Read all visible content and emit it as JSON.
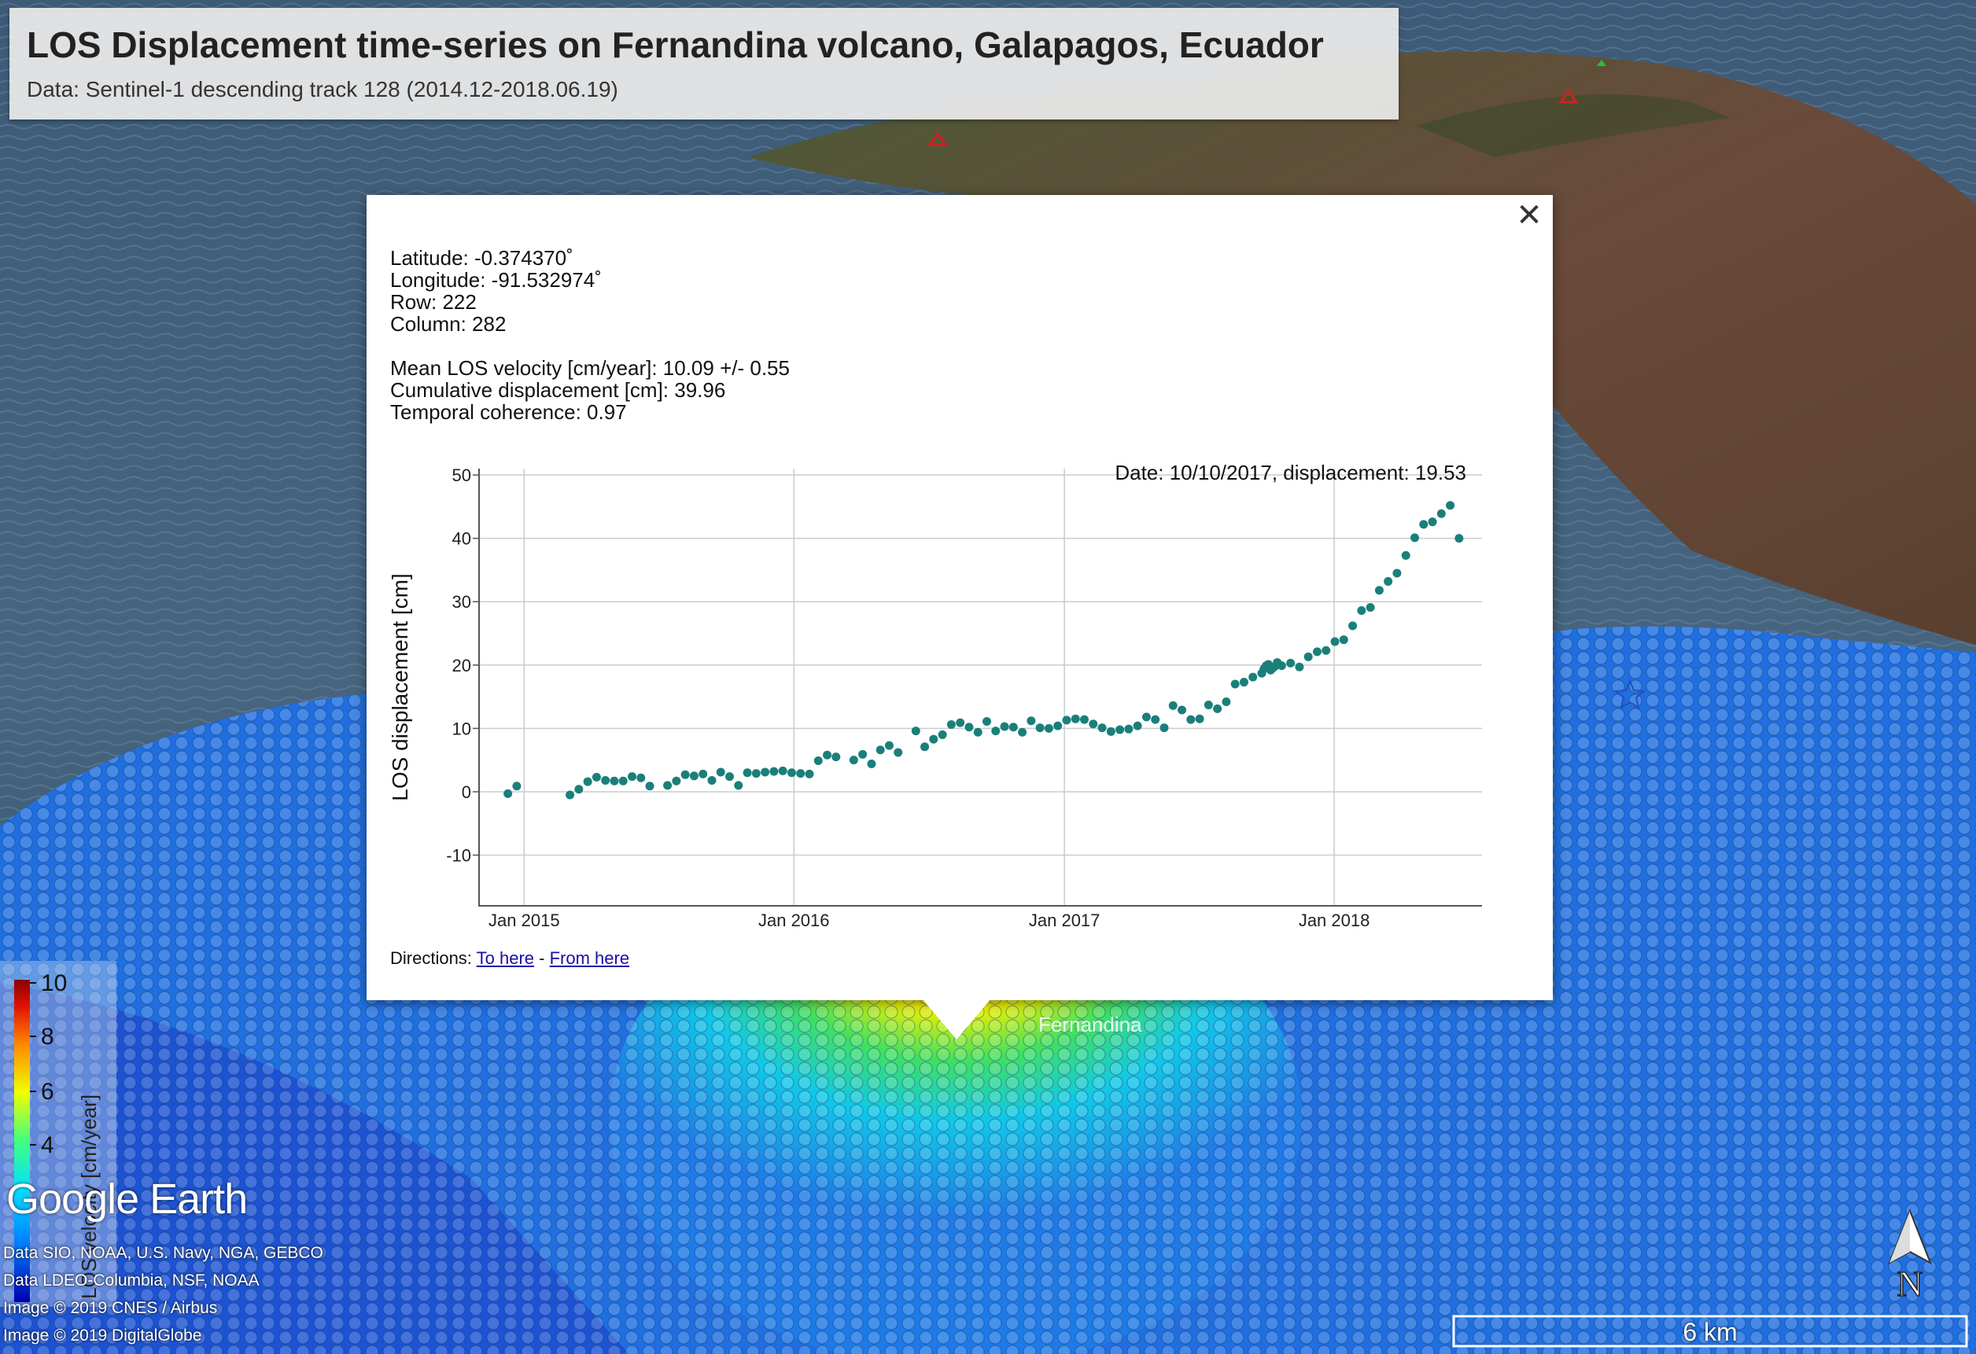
{
  "title": {
    "main": "LOS Displacement time-series on Fernandina volcano, Galapagos, Ecuador",
    "sub": "Data: Sentinel-1 descending track 128 (2014.12-2018.06.19)"
  },
  "popup": {
    "close_icon": "close-icon",
    "latitude": "Latitude: -0.374370˚",
    "longitude": "Longitude: -91.532974˚",
    "row": "Row: 222",
    "column": "Column: 282",
    "mean_velocity": "Mean LOS velocity [cm/year]: 10.09 +/- 0.55",
    "cumulative": "Cumulative displacement [cm]: 39.96",
    "coherence": "Temporal coherence: 0.97",
    "hover_label": "Date: 10/10/2017, displacement: 19.53",
    "directions_prefix": "Directions: ",
    "to_here": "To here",
    "separator": " - ",
    "from_here": "From here"
  },
  "chart_data": {
    "type": "scatter",
    "title": "",
    "xlabel": "",
    "ylabel": "LOS displacement [cm]",
    "ylim": [
      -18,
      51
    ],
    "xlim": [
      "2014-11-01",
      "2018-07-20"
    ],
    "yticks": [
      50,
      40,
      30,
      20,
      10,
      0,
      -10
    ],
    "xticks": [
      {
        "date": "2015-01-01",
        "label": "Jan 2015"
      },
      {
        "date": "2016-01-01",
        "label": "Jan 2016"
      },
      {
        "date": "2017-01-01",
        "label": "Jan 2017"
      },
      {
        "date": "2018-01-01",
        "label": "Jan 2018"
      }
    ],
    "grid": true,
    "color": "#1a7f7a",
    "series": [
      {
        "points": [
          [
            "2014-12-10",
            -0.3
          ],
          [
            "2014-12-22",
            0.9
          ],
          [
            "2015-03-04",
            -0.5
          ],
          [
            "2015-03-16",
            0.4
          ],
          [
            "2015-03-28",
            1.6
          ],
          [
            "2015-04-09",
            2.3
          ],
          [
            "2015-04-21",
            1.8
          ],
          [
            "2015-05-03",
            1.7
          ],
          [
            "2015-05-15",
            1.7
          ],
          [
            "2015-05-27",
            2.4
          ],
          [
            "2015-06-08",
            2.2
          ],
          [
            "2015-06-20",
            0.9
          ],
          [
            "2015-07-14",
            1.0
          ],
          [
            "2015-07-26",
            1.7
          ],
          [
            "2015-08-07",
            2.7
          ],
          [
            "2015-08-19",
            2.5
          ],
          [
            "2015-08-31",
            2.8
          ],
          [
            "2015-09-12",
            1.8
          ],
          [
            "2015-09-24",
            3.1
          ],
          [
            "2015-10-06",
            2.4
          ],
          [
            "2015-10-18",
            1.0
          ],
          [
            "2015-10-30",
            3.0
          ],
          [
            "2015-11-11",
            2.9
          ],
          [
            "2015-11-23",
            3.1
          ],
          [
            "2015-12-05",
            3.2
          ],
          [
            "2015-12-17",
            3.3
          ],
          [
            "2015-12-29",
            3.0
          ],
          [
            "2016-01-10",
            2.9
          ],
          [
            "2016-01-22",
            2.8
          ],
          [
            "2016-02-03",
            4.9
          ],
          [
            "2016-02-15",
            5.8
          ],
          [
            "2016-02-27",
            5.5
          ],
          [
            "2016-03-22",
            5.0
          ],
          [
            "2016-04-03",
            5.9
          ],
          [
            "2016-04-15",
            4.4
          ],
          [
            "2016-04-27",
            6.6
          ],
          [
            "2016-05-09",
            7.3
          ],
          [
            "2016-05-21",
            6.2
          ],
          [
            "2016-06-14",
            9.6
          ],
          [
            "2016-06-26",
            7.1
          ],
          [
            "2016-07-08",
            8.3
          ],
          [
            "2016-07-20",
            9.0
          ],
          [
            "2016-08-01",
            10.6
          ],
          [
            "2016-08-13",
            10.9
          ],
          [
            "2016-08-25",
            10.2
          ],
          [
            "2016-09-06",
            9.4
          ],
          [
            "2016-09-18",
            11.1
          ],
          [
            "2016-09-30",
            9.6
          ],
          [
            "2016-10-12",
            10.3
          ],
          [
            "2016-10-24",
            10.2
          ],
          [
            "2016-11-05",
            9.4
          ],
          [
            "2016-11-17",
            11.2
          ],
          [
            "2016-11-29",
            10.1
          ],
          [
            "2016-12-11",
            10.0
          ],
          [
            "2016-12-23",
            10.4
          ],
          [
            "2017-01-04",
            11.3
          ],
          [
            "2017-01-16",
            11.5
          ],
          [
            "2017-01-28",
            11.4
          ],
          [
            "2017-02-09",
            10.7
          ],
          [
            "2017-02-21",
            10.1
          ],
          [
            "2017-03-05",
            9.5
          ],
          [
            "2017-03-17",
            9.8
          ],
          [
            "2017-03-29",
            9.9
          ],
          [
            "2017-04-10",
            10.4
          ],
          [
            "2017-04-22",
            11.8
          ],
          [
            "2017-05-04",
            11.4
          ],
          [
            "2017-05-16",
            10.1
          ],
          [
            "2017-05-28",
            13.6
          ],
          [
            "2017-06-09",
            12.9
          ],
          [
            "2017-06-21",
            11.4
          ],
          [
            "2017-07-03",
            11.5
          ],
          [
            "2017-07-15",
            13.7
          ],
          [
            "2017-07-27",
            13.1
          ],
          [
            "2017-08-08",
            14.2
          ],
          [
            "2017-08-20",
            17.0
          ],
          [
            "2017-09-01",
            17.3
          ],
          [
            "2017-09-13",
            18.1
          ],
          [
            "2017-09-25",
            18.7
          ],
          [
            "2017-09-28",
            19.4
          ],
          [
            "2017-10-01",
            19.9
          ],
          [
            "2017-10-04",
            20.1
          ],
          [
            "2017-10-07",
            19.2
          ],
          [
            "2017-10-10",
            19.53
          ],
          [
            "2017-10-13",
            19.8
          ],
          [
            "2017-10-16",
            20.4
          ],
          [
            "2017-10-22",
            19.9
          ],
          [
            "2017-11-03",
            20.3
          ],
          [
            "2017-11-15",
            19.7
          ],
          [
            "2017-11-27",
            21.3
          ],
          [
            "2017-12-09",
            22.1
          ],
          [
            "2017-12-21",
            22.3
          ],
          [
            "2018-01-02",
            23.7
          ],
          [
            "2018-01-14",
            24.0
          ],
          [
            "2018-01-26",
            26.2
          ],
          [
            "2018-02-07",
            28.6
          ],
          [
            "2018-02-19",
            29.1
          ],
          [
            "2018-03-03",
            31.8
          ],
          [
            "2018-03-15",
            33.2
          ],
          [
            "2018-03-27",
            34.5
          ],
          [
            "2018-04-08",
            37.3
          ],
          [
            "2018-04-20",
            40.1
          ],
          [
            "2018-05-02",
            42.2
          ],
          [
            "2018-05-14",
            42.6
          ],
          [
            "2018-05-26",
            43.9
          ],
          [
            "2018-06-07",
            45.2
          ],
          [
            "2018-06-19",
            40.0
          ]
        ]
      }
    ]
  },
  "legend": {
    "ylabel": "LOS velocity [cm/year]",
    "ticks": [
      "10",
      "8",
      "6",
      "4"
    ],
    "colors": [
      "#0000b0",
      "#0088ff",
      "#00e0ff",
      "#40ff80",
      "#f0ff00",
      "#ff8800",
      "#e01000",
      "#8a0000"
    ]
  },
  "branding": {
    "google_earth": "Google Earth",
    "credits": [
      "Data SIO, NOAA, U.S. Navy, NGA, GEBCO",
      "Data LDEO-Columbia, NSF, NOAA",
      "Image © 2019 CNES / Airbus",
      "Image © 2019 DigitalGlobe"
    ]
  },
  "scale": {
    "label": "6 km"
  },
  "north": {
    "label": "N",
    "icon": "north-arrow-icon"
  },
  "map_labels": {
    "fernandina": "Fernandina"
  }
}
